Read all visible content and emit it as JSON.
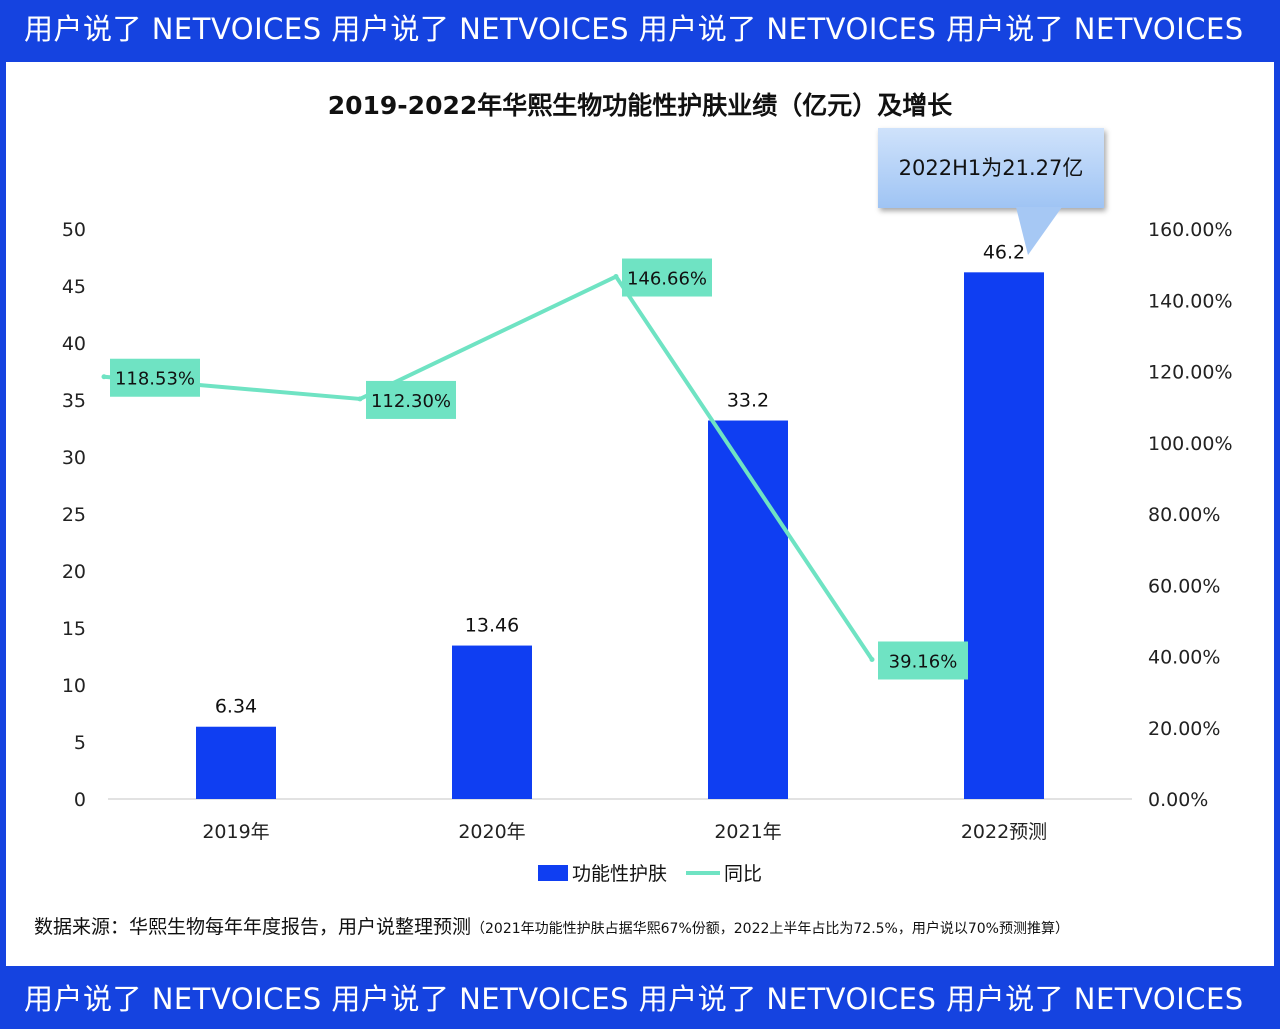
{
  "banner": {
    "text": "用户说了 NETVOICES 用户说了 NETVOICES 用户说了 NETVOICES 用户说了 NETVOICES"
  },
  "chart_data": {
    "type": "bar",
    "title": "2019-2022年华熙生物功能性护肤业绩（亿元）及增长",
    "categories": [
      "2019年",
      "2020年",
      "2021年",
      "2022预测"
    ],
    "series": [
      {
        "name": "功能性护肤",
        "type": "bar",
        "axis": "left",
        "values": [
          6.34,
          13.46,
          33.2,
          46.2
        ],
        "labels": [
          "6.34",
          "13.46",
          "33.2",
          "46.2"
        ],
        "color": "#0f3ef2"
      },
      {
        "name": "同比",
        "type": "line",
        "axis": "right",
        "values": [
          118.53,
          112.3,
          146.66,
          39.16
        ],
        "labels": [
          "118.53%",
          "112.30%",
          "146.66%",
          "39.16%"
        ],
        "color": "#6fe3c3"
      }
    ],
    "ylim": [
      0,
      50
    ],
    "yticks": [
      "0",
      "5",
      "10",
      "15",
      "20",
      "25",
      "30",
      "35",
      "40",
      "45",
      "50"
    ],
    "y2lim": [
      0,
      160
    ],
    "y2ticks": [
      "0.00%",
      "20.00%",
      "40.00%",
      "60.00%",
      "80.00%",
      "100.00%",
      "120.00%",
      "140.00%",
      "160.00%"
    ],
    "grid": false,
    "legend": "bottom",
    "annotation": "2022H1为21.27亿"
  },
  "source": {
    "main": "数据来源：华熙生物每年年度报告，用户说整理预测",
    "note": "（2021年功能性护肤占据华熙67%份额，2022上半年占比为72.5%，用户说以70%预测推算）"
  },
  "colors": {
    "frame": "#1543e0",
    "bar": "#0f3ef2",
    "line": "#6fe3c3"
  }
}
